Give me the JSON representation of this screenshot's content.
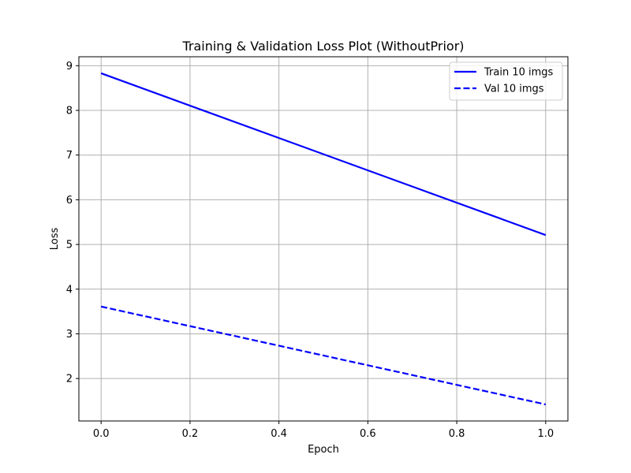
{
  "chart_data": {
    "type": "line",
    "title": "Training & Validation Loss Plot (WithoutPrior)",
    "xlabel": "Epoch",
    "ylabel": "Loss",
    "xlim": [
      -0.05,
      1.05
    ],
    "ylim": [
      1.05,
      9.2
    ],
    "xticks": [
      0.0,
      0.2,
      0.4,
      0.6,
      0.8,
      1.0
    ],
    "xtick_labels": [
      "0.0",
      "0.2",
      "0.4",
      "0.6",
      "0.8",
      "1.0"
    ],
    "yticks": [
      2,
      3,
      4,
      5,
      6,
      7,
      8,
      9
    ],
    "ytick_labels": [
      "2",
      "3",
      "4",
      "5",
      "6",
      "7",
      "8",
      "9"
    ],
    "grid": true,
    "legend_position": "top-right",
    "series": [
      {
        "name": "Train 10 imgs",
        "x": [
          0,
          1
        ],
        "y": [
          8.83,
          5.21
        ],
        "color": "#0000ff",
        "style": "solid"
      },
      {
        "name": "Val 10 imgs",
        "x": [
          0,
          1
        ],
        "y": [
          3.61,
          1.42
        ],
        "color": "#0000ff",
        "style": "dashed"
      }
    ]
  }
}
